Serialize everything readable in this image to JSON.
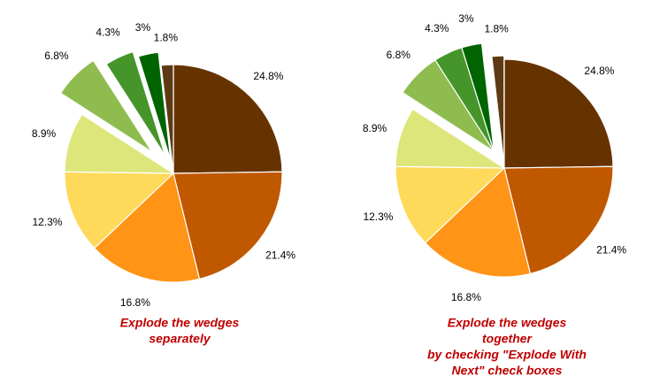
{
  "chart_data": [
    {
      "type": "pie",
      "title": [
        "Explode  the wedges",
        "separately"
      ],
      "values": [
        24.8,
        21.4,
        16.8,
        12.3,
        8.9,
        6.8,
        4.3,
        3,
        1.8
      ],
      "value_labels": [
        "24.8%",
        "21.4%",
        "16.8%",
        "12.3%",
        "8.9%",
        "6.8%",
        "4.3%",
        "3%",
        "1.8%"
      ],
      "colors": [
        "#663300",
        "#c05800",
        "#ff9416",
        "#ffd95a",
        "#dde67a",
        "#8fbc4f",
        "#45952a",
        "#006400",
        "#5e3a14"
      ]
    },
    {
      "type": "pie",
      "title": [
        "Explode the wedges",
        "together",
        "by checking \"Explode With",
        "Next\" check boxes"
      ],
      "values": [
        24.8,
        21.4,
        16.8,
        12.3,
        8.9,
        6.8,
        4.3,
        3,
        1.8
      ],
      "value_labels": [
        "24.8%",
        "21.4%",
        "16.8%",
        "12.3%",
        "8.9%",
        "6.8%",
        "4.3%",
        "3%",
        "1.8%"
      ],
      "colors": [
        "#663300",
        "#c05800",
        "#ff9416",
        "#ffd95a",
        "#dde67a",
        "#8fbc4f",
        "#45952a",
        "#006400",
        "#5e3a14"
      ]
    }
  ]
}
